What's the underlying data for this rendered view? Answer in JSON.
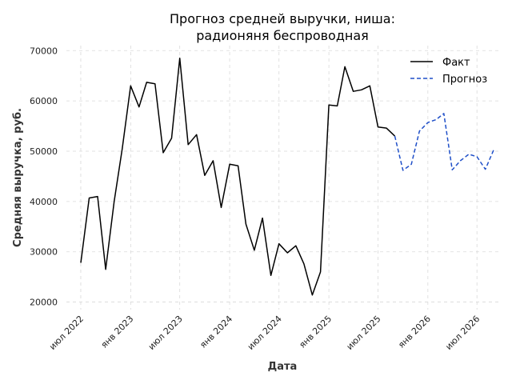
{
  "chart_data": {
    "type": "line",
    "title_lines": [
      "Прогноз средней выручки, ниша:",
      "радионяня беспроводная"
    ],
    "xlabel": "Дата",
    "ylabel": "Средняя выручка, руб.",
    "ylim": [
      18500,
      71000
    ],
    "xlim": [
      "2022-05-09",
      "2026-09-24"
    ],
    "y_ticks": [
      20000,
      30000,
      40000,
      50000,
      60000,
      70000
    ],
    "x_ticks": [
      {
        "date": "2022-07-01",
        "label": "июл 2022"
      },
      {
        "date": "2023-01-01",
        "label": "янв 2023"
      },
      {
        "date": "2023-07-01",
        "label": "июл 2023"
      },
      {
        "date": "2024-01-01",
        "label": "янв 2024"
      },
      {
        "date": "2024-07-01",
        "label": "июл 2024"
      },
      {
        "date": "2025-01-01",
        "label": "янв 2025"
      },
      {
        "date": "2025-07-01",
        "label": "июл 2025"
      },
      {
        "date": "2026-01-01",
        "label": "янв 2026"
      },
      {
        "date": "2026-07-01",
        "label": "июл 2026"
      }
    ],
    "grid": true,
    "legend_position": "top-right",
    "series": [
      {
        "name": "Факт",
        "color": "#000000",
        "dash": "solid",
        "points": [
          [
            "2022-07-01",
            27800
          ],
          [
            "2022-08-01",
            40700
          ],
          [
            "2022-09-01",
            41000
          ],
          [
            "2022-10-01",
            26500
          ],
          [
            "2022-11-01",
            40000
          ],
          [
            "2022-12-01",
            50500
          ],
          [
            "2023-01-01",
            63000
          ],
          [
            "2023-02-01",
            58800
          ],
          [
            "2023-03-01",
            63700
          ],
          [
            "2023-04-01",
            63400
          ],
          [
            "2023-05-01",
            49700
          ],
          [
            "2023-06-01",
            52600
          ],
          [
            "2023-07-01",
            68500
          ],
          [
            "2023-08-01",
            51300
          ],
          [
            "2023-09-01",
            53300
          ],
          [
            "2023-10-01",
            45200
          ],
          [
            "2023-11-01",
            48100
          ],
          [
            "2023-12-01",
            38800
          ],
          [
            "2024-01-01",
            47400
          ],
          [
            "2024-02-01",
            47100
          ],
          [
            "2024-03-01",
            35500
          ],
          [
            "2024-04-01",
            30300
          ],
          [
            "2024-05-01",
            36700
          ],
          [
            "2024-06-01",
            25300
          ],
          [
            "2024-07-01",
            31600
          ],
          [
            "2024-08-01",
            29800
          ],
          [
            "2024-09-01",
            31200
          ],
          [
            "2024-10-01",
            27600
          ],
          [
            "2024-11-01",
            21400
          ],
          [
            "2024-12-01",
            26000
          ],
          [
            "2025-01-01",
            59200
          ],
          [
            "2025-02-01",
            59000
          ],
          [
            "2025-03-01",
            66800
          ],
          [
            "2025-04-01",
            61900
          ],
          [
            "2025-05-01",
            62200
          ],
          [
            "2025-06-01",
            63000
          ],
          [
            "2025-07-01",
            54800
          ],
          [
            "2025-08-01",
            54600
          ],
          [
            "2025-09-01",
            53000
          ]
        ]
      },
      {
        "name": "Прогноз",
        "color": "#1f4fc8",
        "dash": "dashed",
        "points": [
          [
            "2025-09-01",
            53000
          ],
          [
            "2025-10-01",
            46200
          ],
          [
            "2025-11-01",
            47400
          ],
          [
            "2025-12-01",
            54000
          ],
          [
            "2026-01-01",
            55700
          ],
          [
            "2026-02-01",
            56300
          ],
          [
            "2026-03-01",
            57500
          ],
          [
            "2026-04-01",
            46300
          ],
          [
            "2026-05-01",
            48100
          ],
          [
            "2026-06-01",
            49400
          ],
          [
            "2026-07-01",
            48900
          ],
          [
            "2026-08-01",
            46400
          ],
          [
            "2026-09-01",
            50300
          ]
        ]
      }
    ]
  }
}
